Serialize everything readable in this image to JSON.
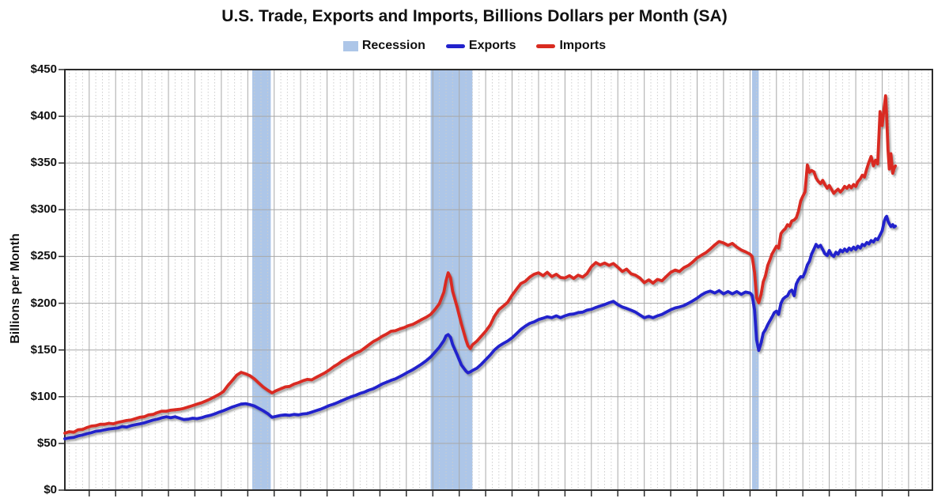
{
  "title": "U.S. Trade, Exports and Imports, Billions Dollars per Month (SA)",
  "chart_data": {
    "type": "line",
    "title": "U.S. Trade, Exports and Imports, Billions Dollars per Month (SA)",
    "ylabel": "Billions per Month",
    "ylim": [
      0,
      450
    ],
    "y_step": 50,
    "y_tick_labels": [
      "$450",
      "$400",
      "$350",
      "$300",
      "$250",
      "$200",
      "$150",
      "$100",
      "$50",
      "$0"
    ],
    "x_axis": {
      "tick_labels_visible": false,
      "start_year": 1994.08,
      "end_year": 2026.9,
      "major_gridline_interval_years": 1,
      "minor_gridline_interval_years": 0.25
    },
    "grid": "major-solid, minor-dotted-vertical, horizontal-every-50",
    "legend": [
      {
        "label": "Recession",
        "swatch": "band"
      },
      {
        "label": "Exports",
        "swatch": "line"
      },
      {
        "label": "Imports",
        "swatch": "line"
      }
    ],
    "colors": {
      "recession_band": "#ADC6E8",
      "exports_line": "#2222CC",
      "imports_line": "#D92B20",
      "major_grid": "#A8A8A8",
      "minor_grid": "#CDCDCD",
      "border": "#2B2B2B",
      "text": "#111111"
    },
    "recessions": [
      {
        "start": 2001.17,
        "end": 2001.87
      },
      {
        "start": 2007.92,
        "end": 2009.5
      },
      {
        "start": 2020.08,
        "end": 2020.33
      }
    ],
    "x": [
      1994.08,
      1994.25,
      1994.42,
      1994.58,
      1994.75,
      1994.92,
      1995.08,
      1995.25,
      1995.42,
      1995.58,
      1995.75,
      1995.92,
      1996.08,
      1996.25,
      1996.42,
      1996.58,
      1996.75,
      1996.92,
      1997.08,
      1997.25,
      1997.42,
      1997.58,
      1997.75,
      1997.92,
      1998.08,
      1998.25,
      1998.42,
      1998.58,
      1998.75,
      1998.92,
      1999.08,
      1999.25,
      1999.42,
      1999.58,
      1999.75,
      1999.92,
      2000.08,
      2000.25,
      2000.42,
      2000.58,
      2000.75,
      2000.92,
      2001.08,
      2001.25,
      2001.42,
      2001.58,
      2001.75,
      2001.92,
      2002.08,
      2002.25,
      2002.42,
      2002.58,
      2002.75,
      2002.92,
      2003.08,
      2003.25,
      2003.42,
      2003.58,
      2003.75,
      2003.92,
      2004.08,
      2004.25,
      2004.42,
      2004.58,
      2004.75,
      2004.92,
      2005.08,
      2005.25,
      2005.42,
      2005.58,
      2005.75,
      2005.92,
      2006.08,
      2006.25,
      2006.42,
      2006.58,
      2006.75,
      2006.92,
      2007.08,
      2007.25,
      2007.42,
      2007.58,
      2007.75,
      2007.92,
      2008.08,
      2008.25,
      2008.42,
      2008.5,
      2008.58,
      2008.67,
      2008.75,
      2008.92,
      2009.08,
      2009.25,
      2009.33,
      2009.42,
      2009.5,
      2009.67,
      2009.83,
      2010.0,
      2010.17,
      2010.33,
      2010.5,
      2010.67,
      2010.83,
      2011.0,
      2011.17,
      2011.33,
      2011.5,
      2011.67,
      2011.83,
      2012.0,
      2012.17,
      2012.33,
      2012.5,
      2012.67,
      2012.83,
      2013.0,
      2013.17,
      2013.33,
      2013.5,
      2013.67,
      2013.83,
      2014.0,
      2014.17,
      2014.33,
      2014.5,
      2014.67,
      2014.83,
      2015.0,
      2015.17,
      2015.33,
      2015.5,
      2015.67,
      2015.83,
      2016.0,
      2016.17,
      2016.33,
      2016.5,
      2016.67,
      2016.83,
      2017.0,
      2017.17,
      2017.33,
      2017.5,
      2017.67,
      2017.83,
      2018.0,
      2018.17,
      2018.33,
      2018.5,
      2018.67,
      2018.83,
      2019.0,
      2019.17,
      2019.33,
      2019.5,
      2019.67,
      2019.83,
      2020.0,
      2020.08,
      2020.17,
      2020.25,
      2020.33,
      2020.42,
      2020.5,
      2020.58,
      2020.67,
      2020.75,
      2020.83,
      2020.92,
      2021.0,
      2021.08,
      2021.17,
      2021.25,
      2021.33,
      2021.42,
      2021.5,
      2021.58,
      2021.67,
      2021.75,
      2021.83,
      2021.92,
      2022.0,
      2022.08,
      2022.17,
      2022.25,
      2022.33,
      2022.42,
      2022.5,
      2022.58,
      2022.67,
      2022.75,
      2022.83,
      2022.92,
      2023.0,
      2023.08,
      2023.17,
      2023.25,
      2023.33,
      2023.42,
      2023.5,
      2023.58,
      2023.67,
      2023.75,
      2023.83,
      2023.92,
      2024.0,
      2024.08,
      2024.17,
      2024.25,
      2024.33,
      2024.42,
      2024.5,
      2024.58,
      2024.67,
      2024.75,
      2024.83,
      2024.92,
      2025.0,
      2025.08,
      2025.13,
      2025.17,
      2025.22,
      2025.27,
      2025.33,
      2025.4,
      2025.45,
      2025.5
    ],
    "series": [
      {
        "name": "Exports",
        "values": [
          55,
          56,
          56.5,
          58,
          59,
          60.5,
          61.5,
          63,
          63.5,
          64.5,
          65.5,
          66,
          66.5,
          68,
          67.5,
          69,
          70,
          71,
          72,
          73.5,
          75,
          76,
          77.5,
          78.5,
          77.5,
          78.5,
          77,
          75.5,
          76,
          77,
          76.5,
          77.5,
          79,
          80,
          81.5,
          83.5,
          85,
          87,
          89,
          90.5,
          92,
          92.5,
          91.5,
          90,
          87.5,
          85,
          82,
          78,
          79,
          80,
          80.5,
          80,
          81,
          80.5,
          81.5,
          82,
          83.5,
          85,
          86.5,
          88.5,
          90.5,
          92,
          94,
          96,
          98,
          100,
          101.5,
          103.5,
          105,
          107,
          108.5,
          111,
          113.5,
          115.5,
          117.5,
          119,
          121.5,
          124,
          126.5,
          129,
          132,
          135,
          138.5,
          142.5,
          147.5,
          153,
          160,
          165,
          166.5,
          163.5,
          156,
          145,
          134,
          127.5,
          125.5,
          126.5,
          128,
          130.5,
          134.5,
          139.5,
          144.5,
          150,
          154,
          157,
          159.5,
          163,
          167.5,
          172,
          175.5,
          178.5,
          180,
          182.5,
          184,
          185.5,
          184.5,
          186.5,
          184.5,
          186.5,
          188,
          188.5,
          190,
          190.5,
          192.5,
          193.5,
          195.5,
          197,
          198.5,
          200.5,
          202,
          198.5,
          196,
          194.5,
          192.5,
          190.5,
          187.5,
          184.5,
          186,
          184.5,
          186.5,
          188,
          190.5,
          193,
          195,
          196,
          197.5,
          200,
          202.5,
          205.5,
          209,
          211.5,
          213,
          211,
          213.5,
          210,
          212.5,
          210,
          212.5,
          209.5,
          212,
          211,
          208.5,
          193,
          161,
          149.5,
          157.5,
          168,
          171.5,
          177,
          181,
          185,
          190,
          191.5,
          188,
          200,
          204.5,
          206.5,
          208,
          212.5,
          214,
          208,
          220.5,
          225,
          228.5,
          228,
          233,
          241,
          245,
          252.5,
          258,
          263,
          260,
          262,
          257.5,
          253,
          251,
          256.5,
          252,
          250,
          254.5,
          252.5,
          257,
          255,
          258,
          255.5,
          259,
          257,
          260,
          257.5,
          261,
          259,
          263,
          261.5,
          265,
          263.5,
          267,
          265.5,
          269,
          268,
          273,
          277.5,
          288,
          291.5,
          293,
          288,
          285,
          282,
          284,
          281.5,
          282.5
        ]
      },
      {
        "name": "Imports",
        "values": [
          61,
          62.5,
          62,
          64.5,
          65,
          67,
          68.5,
          69,
          70.5,
          70.5,
          71.5,
          71,
          72.5,
          73.5,
          74.5,
          75,
          76.5,
          78,
          78.5,
          80.5,
          81,
          83,
          84.5,
          84.5,
          85.5,
          86,
          86.5,
          87.5,
          89,
          90.5,
          92,
          93.5,
          95.5,
          97.5,
          100,
          102.5,
          105.5,
          112,
          117.5,
          123,
          126,
          124.5,
          122.5,
          119,
          114.5,
          110.5,
          107,
          104,
          106.5,
          108.5,
          110.5,
          111,
          113.5,
          115,
          117,
          118.5,
          118,
          120.5,
          123,
          125.5,
          128.5,
          132,
          135,
          138.5,
          141,
          144,
          146.5,
          148.5,
          152,
          155.5,
          159,
          161.5,
          164.5,
          167,
          170,
          170.5,
          172.5,
          174,
          176,
          177.5,
          180,
          182.5,
          185,
          188,
          193,
          199.5,
          212,
          224,
          232.5,
          227,
          213,
          196,
          178,
          161,
          154.5,
          151.5,
          155.5,
          159.5,
          164.5,
          170,
          176.5,
          186,
          193,
          197,
          201,
          208.5,
          215,
          221,
          223.5,
          228,
          231,
          232.5,
          229.5,
          233,
          228.5,
          231,
          227.5,
          227,
          229.5,
          226.5,
          230,
          228,
          231.5,
          239,
          243.5,
          241,
          243,
          240.5,
          242.5,
          238.5,
          234,
          236.5,
          231.5,
          230,
          227,
          222,
          225,
          221.5,
          225.5,
          224,
          228.5,
          233,
          235.5,
          234,
          238,
          240.5,
          244,
          248.5,
          251.5,
          254,
          258,
          262.5,
          266,
          264.5,
          262,
          264,
          260,
          257,
          255,
          252.5,
          250,
          233,
          206,
          200.5,
          209.5,
          223,
          229,
          240.5,
          246,
          252.5,
          257,
          261,
          259,
          274.5,
          277.5,
          279.5,
          284,
          282.5,
          288,
          289,
          291.5,
          298,
          309.5,
          314.5,
          319,
          348,
          340,
          342,
          340.5,
          334,
          330.5,
          328,
          331.5,
          327,
          323,
          326,
          322,
          317.5,
          320,
          322,
          319,
          321.5,
          325,
          323,
          326,
          323.5,
          327,
          325,
          330,
          333,
          337,
          335,
          344,
          351,
          357,
          347,
          353,
          349,
          405,
          390,
          411,
          422,
          400,
          365,
          343.5,
          360,
          339,
          344,
          347
        ]
      }
    ]
  }
}
